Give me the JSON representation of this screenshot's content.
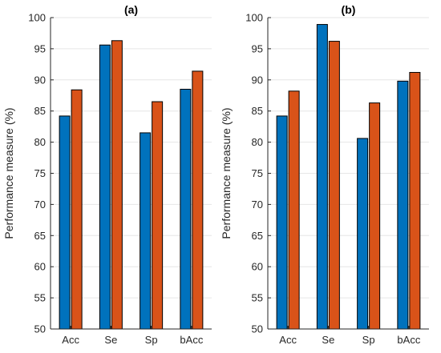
{
  "chart_data": [
    {
      "type": "bar",
      "title": "(a)",
      "ylabel": "Performance measure (%)",
      "xlabel": "",
      "categories": [
        "Acc",
        "Se",
        "Sp",
        "bAcc"
      ],
      "ylim": [
        50,
        100
      ],
      "yticks": [
        50,
        55,
        60,
        65,
        70,
        75,
        80,
        85,
        90,
        95,
        100
      ],
      "grid": "horizontal",
      "series": [
        {
          "values": [
            84.2,
            95.6,
            81.5,
            88.5
          ],
          "color": "#0072BD"
        },
        {
          "values": [
            88.4,
            96.3,
            86.5,
            91.4
          ],
          "color": "#D95319"
        }
      ]
    },
    {
      "type": "bar",
      "title": "(b)",
      "ylabel": "Performance measure (%)",
      "xlabel": "",
      "categories": [
        "Acc",
        "Se",
        "Sp",
        "bAcc"
      ],
      "ylim": [
        50,
        100
      ],
      "yticks": [
        50,
        55,
        60,
        65,
        70,
        75,
        80,
        85,
        90,
        95,
        100
      ],
      "grid": "horizontal",
      "series": [
        {
          "values": [
            84.2,
            98.9,
            80.6,
            89.8
          ],
          "color": "#0072BD"
        },
        {
          "values": [
            88.2,
            96.2,
            86.3,
            91.2
          ],
          "color": "#D95319"
        }
      ]
    }
  ]
}
